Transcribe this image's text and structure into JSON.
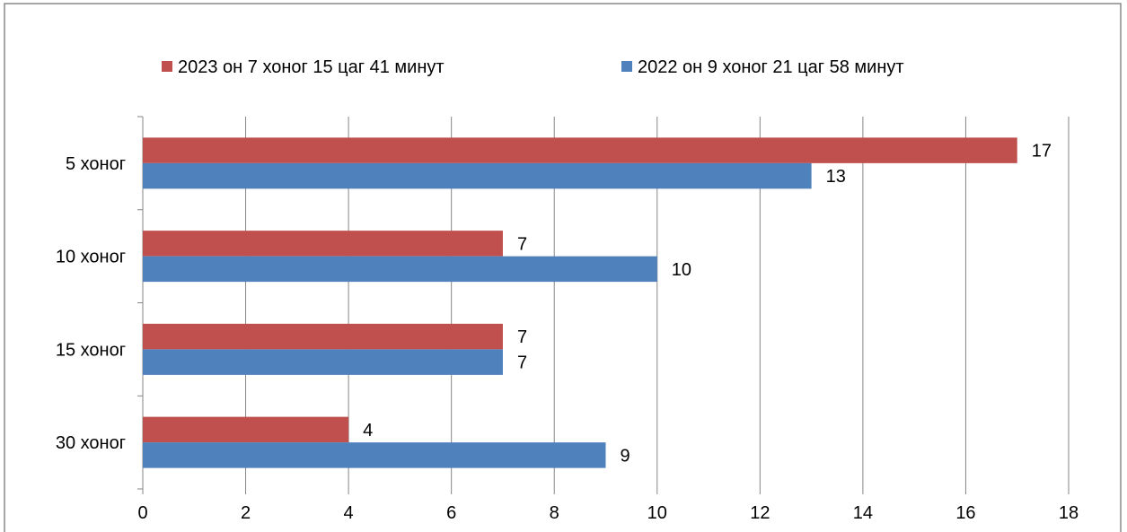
{
  "chart_data": {
    "type": "bar",
    "orientation": "horizontal",
    "categories": [
      "5 хоног",
      "10 хоног",
      "15 хоног",
      "30 хоног"
    ],
    "series": [
      {
        "name": "2023 он 7 хоног 15 цаг 41 минут",
        "color": "#C0504D",
        "values": [
          17,
          7,
          7,
          4
        ]
      },
      {
        "name": "2022 он 9 хоног 21 цаг 58 минут",
        "color": "#4F81BD",
        "values": [
          13,
          10,
          7,
          9
        ]
      }
    ],
    "xlim": [
      0,
      18
    ],
    "x_ticks": [
      0,
      2,
      4,
      6,
      8,
      10,
      12,
      14,
      16,
      18
    ],
    "grid": true,
    "legend_position": "top",
    "data_labels": true,
    "title": "",
    "xlabel": "",
    "ylabel": ""
  }
}
